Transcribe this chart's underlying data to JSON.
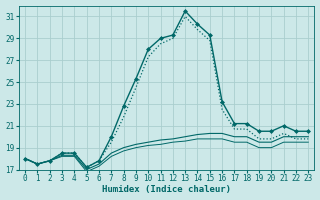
{
  "xlabel": "Humidex (Indice chaleur)",
  "background_color": "#cce8e8",
  "grid_color": "#aacece",
  "line_color": "#006868",
  "xlim": [
    -0.5,
    23.5
  ],
  "ylim": [
    17,
    32
  ],
  "yticks": [
    17,
    19,
    21,
    23,
    25,
    27,
    29,
    31
  ],
  "xticks": [
    0,
    1,
    2,
    3,
    4,
    5,
    6,
    7,
    8,
    9,
    10,
    11,
    12,
    13,
    14,
    15,
    16,
    17,
    18,
    19,
    20,
    21,
    22,
    23
  ],
  "series": [
    {
      "x": [
        0,
        1,
        2,
        3,
        4,
        5,
        6,
        7,
        8,
        9,
        10,
        11,
        12,
        13,
        14,
        15,
        16,
        17,
        18,
        19,
        20,
        21,
        22,
        23
      ],
      "y": [
        18.0,
        17.5,
        17.8,
        18.5,
        18.5,
        17.2,
        17.8,
        20.0,
        22.8,
        25.3,
        28.0,
        29.0,
        29.3,
        31.5,
        30.3,
        29.3,
        23.2,
        21.2,
        21.2,
        20.5,
        20.5,
        21.0,
        20.5,
        20.5
      ],
      "style": "-",
      "marker": "D",
      "markersize": 2.0,
      "linewidth": 1.0
    },
    {
      "x": [
        0,
        1,
        2,
        3,
        4,
        5,
        6,
        7,
        8,
        9,
        10,
        11,
        12,
        13,
        14,
        15,
        16,
        17,
        18,
        19,
        20,
        21,
        22,
        23
      ],
      "y": [
        18.0,
        17.5,
        17.8,
        18.5,
        18.5,
        17.2,
        17.8,
        19.5,
        21.8,
        24.5,
        27.3,
        28.5,
        29.0,
        31.0,
        29.8,
        28.8,
        22.5,
        20.7,
        20.7,
        19.8,
        19.8,
        20.3,
        19.8,
        19.8
      ],
      "style": ":",
      "marker": null,
      "markersize": 0,
      "linewidth": 0.9
    },
    {
      "x": [
        0,
        1,
        2,
        3,
        4,
        5,
        6,
        7,
        8,
        9,
        10,
        11,
        12,
        13,
        14,
        15,
        16,
        17,
        18,
        19,
        20,
        21,
        22,
        23
      ],
      "y": [
        18.0,
        17.5,
        17.8,
        18.3,
        18.3,
        17.0,
        17.5,
        18.5,
        19.0,
        19.3,
        19.5,
        19.7,
        19.8,
        20.0,
        20.2,
        20.3,
        20.3,
        20.0,
        20.0,
        19.5,
        19.5,
        20.0,
        20.0,
        20.0
      ],
      "style": "-",
      "marker": null,
      "markersize": 0,
      "linewidth": 0.8
    },
    {
      "x": [
        0,
        1,
        2,
        3,
        4,
        5,
        6,
        7,
        8,
        9,
        10,
        11,
        12,
        13,
        14,
        15,
        16,
        17,
        18,
        19,
        20,
        21,
        22,
        23
      ],
      "y": [
        18.0,
        17.5,
        17.8,
        18.2,
        18.2,
        16.8,
        17.3,
        18.2,
        18.7,
        19.0,
        19.2,
        19.3,
        19.5,
        19.6,
        19.8,
        19.8,
        19.8,
        19.5,
        19.5,
        19.0,
        19.0,
        19.5,
        19.5,
        19.5
      ],
      "style": "-",
      "marker": null,
      "markersize": 0,
      "linewidth": 0.7
    }
  ]
}
